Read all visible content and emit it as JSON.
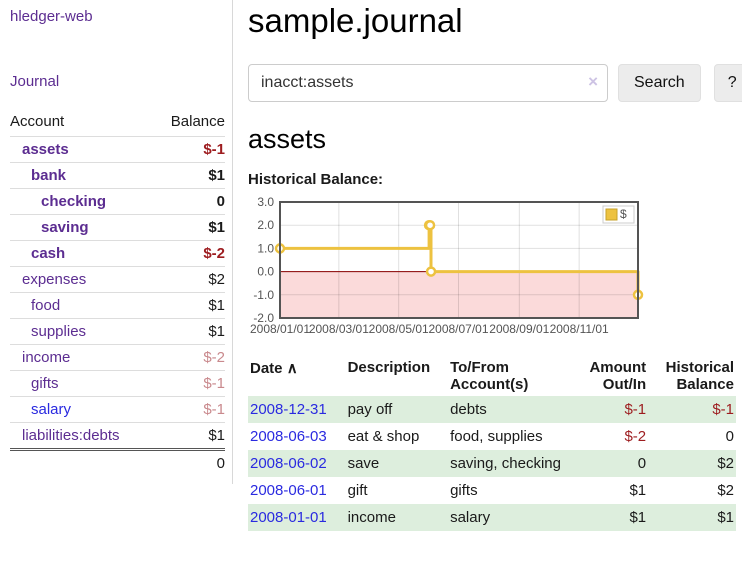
{
  "colors": {
    "link_purple": "#5c2d91",
    "link_blue": "#2a2ae0",
    "negative_strong": "#9d1c1f",
    "negative_faded": "#c9898d",
    "row_shade_green": "#ddeedd",
    "series_gold": "#edc240"
  },
  "sidebar": {
    "brand": "hledger-web",
    "nav_journal": "Journal",
    "accounts_table": {
      "col_account": "Account",
      "col_balance": "Balance",
      "rows": [
        {
          "name": "assets",
          "depth": 1,
          "bold": true,
          "balance": "$-1"
        },
        {
          "name": "bank",
          "depth": 2,
          "bold": true,
          "balance": "$1"
        },
        {
          "name": "checking",
          "depth": 3,
          "bold": true,
          "balance": "0"
        },
        {
          "name": "saving",
          "depth": 3,
          "bold": true,
          "balance": "$1"
        },
        {
          "name": "cash",
          "depth": 2,
          "bold": true,
          "balance": "$-2"
        },
        {
          "name": "expenses",
          "depth": 1,
          "bold": false,
          "balance": "$2"
        },
        {
          "name": "food",
          "depth": 2,
          "bold": false,
          "balance": "$1"
        },
        {
          "name": "supplies",
          "depth": 2,
          "bold": false,
          "balance": "$1"
        },
        {
          "name": "income",
          "depth": 1,
          "bold": false,
          "balance": "$-2"
        },
        {
          "name": "gifts",
          "depth": 2,
          "bold": false,
          "balance": "$-1"
        },
        {
          "name": "salary",
          "depth": 2,
          "bold": false,
          "balance": "$-1",
          "variant": "blue"
        },
        {
          "name": "liabilities:debts",
          "depth": 1,
          "bold": false,
          "balance": "$1"
        }
      ],
      "total": "0"
    }
  },
  "main": {
    "title": "sample.journal",
    "search": {
      "value": "inacct:assets",
      "clear_label": "×",
      "search_button": "Search",
      "help_button": "?"
    },
    "account_heading": "assets",
    "chart_heading": "Historical Balance:"
  },
  "chart_data": {
    "type": "line",
    "step": true,
    "title": "Historical Balance:",
    "legend": "$",
    "legend_position": "top-right",
    "grid": true,
    "xlim": [
      "2008-01-01",
      "2008-12-31"
    ],
    "ylim": [
      -2,
      3
    ],
    "y_ticks": [
      3.0,
      2.0,
      1.0,
      0.0,
      -1.0,
      -2.0
    ],
    "x_ticks": [
      {
        "pos": "2008-01-01",
        "label": "2008/01/01"
      },
      {
        "pos": "2008-03-01",
        "label": "2008/03/01"
      },
      {
        "pos": "2008-05-01",
        "label": "2008/05/01"
      },
      {
        "pos": "2008-07-01",
        "label": "2008/07/01"
      },
      {
        "pos": "2008-09-01",
        "label": "2008/09/01"
      },
      {
        "pos": "2008-11-01",
        "label": "2008/11/01"
      }
    ],
    "series": [
      {
        "name": "$",
        "color": "#edc240",
        "points": [
          [
            "2008-01-01",
            1
          ],
          [
            "2008-06-01",
            2
          ],
          [
            "2008-06-02",
            2
          ],
          [
            "2008-06-03",
            0
          ],
          [
            "2008-12-31",
            -1
          ]
        ]
      }
    ],
    "zero_line_color": "#8b0000",
    "negative_fill": "#fbdada",
    "plot_border_color": "#545454"
  },
  "register": {
    "headers": {
      "date": "Date",
      "date_sort_icon": "∧",
      "description": "Description",
      "accounts": "To/From Account(s)",
      "amount": "Amount Out/In",
      "balance": "Historical Balance"
    },
    "rows": [
      {
        "date": "2008-12-31",
        "description": "pay off",
        "accounts": "debts",
        "amount": "$-1",
        "balance": "$-1",
        "shaded": true
      },
      {
        "date": "2008-06-03",
        "description": "eat & shop",
        "accounts": "food, supplies",
        "amount": "$-2",
        "balance": "0",
        "shaded": false
      },
      {
        "date": "2008-06-02",
        "description": "save",
        "accounts": "saving, checking",
        "amount": "0",
        "balance": "$2",
        "shaded": true
      },
      {
        "date": "2008-06-01",
        "description": "gift",
        "accounts": "gifts",
        "amount": "$1",
        "balance": "$2",
        "shaded": false
      },
      {
        "date": "2008-01-01",
        "description": "income",
        "accounts": "salary",
        "amount": "$1",
        "balance": "$1",
        "shaded": true
      }
    ]
  }
}
